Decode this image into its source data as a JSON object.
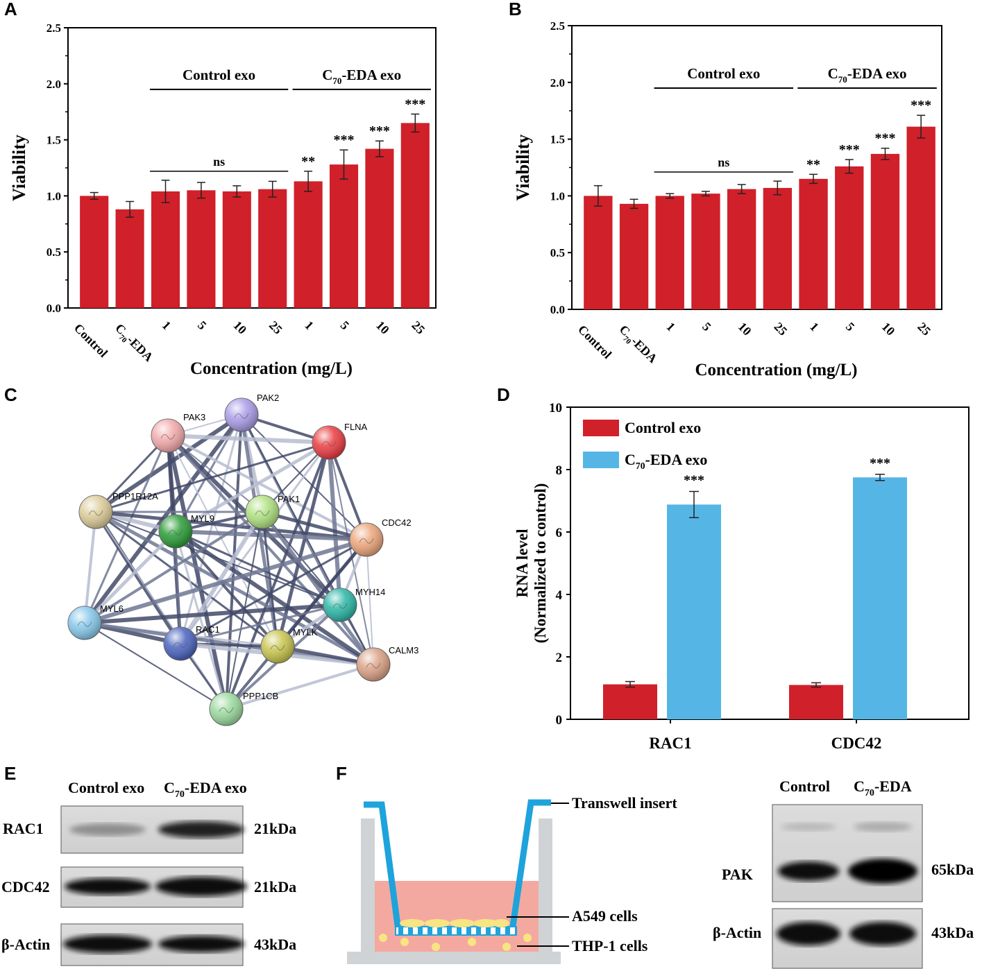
{
  "panels": {
    "A": "A",
    "B": "B",
    "C": "C",
    "D": "D",
    "E": "E",
    "F": "F"
  },
  "chart_data": [
    {
      "id": "A",
      "type": "bar",
      "ylabel": "Viability",
      "xlabel": "Concentration (mg/L)",
      "ylim": [
        0,
        2.5
      ],
      "yticks": [
        "0.0",
        "0.5",
        "1.0",
        "1.5",
        "2.0",
        "2.5"
      ],
      "categories": [
        "Control",
        "C70-EDA",
        "1",
        "5",
        "10",
        "25",
        "1",
        "5",
        "10",
        "25"
      ],
      "values": [
        1.0,
        0.88,
        1.04,
        1.05,
        1.04,
        1.06,
        1.13,
        1.28,
        1.42,
        1.65
      ],
      "errors": [
        0.03,
        0.07,
        0.1,
        0.07,
        0.05,
        0.07,
        0.09,
        0.13,
        0.07,
        0.08
      ],
      "significance": [
        "",
        "",
        "",
        "",
        "",
        "",
        "**",
        "***",
        "***",
        "***"
      ],
      "groups": [
        {
          "label": "Control exo",
          "from": 2,
          "to": 5
        },
        {
          "label": "C70-EDA exo",
          "from": 6,
          "to": 9
        }
      ],
      "ns_label": "ns"
    },
    {
      "id": "B",
      "type": "bar",
      "ylabel": "Viability",
      "xlabel": "Concentration (mg/L)",
      "ylim": [
        0,
        2.5
      ],
      "yticks": [
        "0.0",
        "0.5",
        "1.0",
        "1.5",
        "2.0",
        "2.5"
      ],
      "categories": [
        "Control",
        "C70-EDA",
        "1",
        "5",
        "10",
        "25",
        "1",
        "5",
        "10",
        "25"
      ],
      "values": [
        1.0,
        0.93,
        1.0,
        1.02,
        1.06,
        1.07,
        1.15,
        1.26,
        1.37,
        1.61
      ],
      "errors": [
        0.09,
        0.04,
        0.02,
        0.02,
        0.04,
        0.06,
        0.04,
        0.06,
        0.05,
        0.1
      ],
      "significance": [
        "",
        "",
        "",
        "",
        "",
        "",
        "**",
        "***",
        "***",
        "***"
      ],
      "groups": [
        {
          "label": "Control exo",
          "from": 2,
          "to": 5
        },
        {
          "label": "C70-EDA exo",
          "from": 6,
          "to": 9
        }
      ],
      "ns_label": "ns"
    },
    {
      "id": "D",
      "type": "bar",
      "ylabel_line1": "RNA level",
      "ylabel_line2": "(Normalized to control)",
      "ylim": [
        0,
        10
      ],
      "yticks": [
        "0",
        "2",
        "4",
        "6",
        "8",
        "10"
      ],
      "categories": [
        "RAC1",
        "CDC42"
      ],
      "series": [
        {
          "name": "Control exo",
          "values": [
            1.12,
            1.1
          ],
          "errors": [
            0.09,
            0.07
          ],
          "color": "#d0202a"
        },
        {
          "name": "C70-EDA exo",
          "values": [
            6.88,
            7.75
          ],
          "errors": [
            0.42,
            0.1
          ],
          "color": "#55b6e5",
          "significance": [
            "***",
            "***"
          ]
        }
      ]
    }
  ],
  "network": {
    "nodes": [
      {
        "id": "PAK2",
        "color": "#a99be6"
      },
      {
        "id": "PAK3",
        "color": "#f2a9ab"
      },
      {
        "id": "FLNA",
        "color": "#ea3b41"
      },
      {
        "id": "PPP1R12A",
        "color": "#dccb98"
      },
      {
        "id": "MYL9",
        "color": "#2b9c38"
      },
      {
        "id": "PAK1",
        "color": "#aee07e"
      },
      {
        "id": "CDC42",
        "color": "#eca57a"
      },
      {
        "id": "MYH14",
        "color": "#2bb6a6"
      },
      {
        "id": "MYL6",
        "color": "#86c8ea"
      },
      {
        "id": "RAC1",
        "color": "#4a63bd"
      },
      {
        "id": "MYLK",
        "color": "#c7c34d"
      },
      {
        "id": "CALM3",
        "color": "#dba185"
      },
      {
        "id": "PPP1CB",
        "color": "#9ad99d"
      }
    ]
  },
  "panel_e": {
    "lane1": "Control exo",
    "lane2_pre": "C",
    "lane2_sub": "70",
    "lane2_post": "-EDA exo",
    "rows": [
      {
        "label": "RAC1",
        "size": "21kDa"
      },
      {
        "label": "CDC42",
        "size": "21kDa"
      },
      {
        "label": "β-Actin",
        "size": "43kDa"
      }
    ]
  },
  "panel_f": {
    "insert": "Transwell insert",
    "a549": "A549 cells",
    "thp1": "THP-1 cells",
    "lane1": "Control",
    "lane2_pre": "C",
    "lane2_sub": "70",
    "lane2_post": "-EDA",
    "rows": [
      {
        "label": "PAK",
        "size": "65kDa"
      },
      {
        "label": "β-Actin",
        "size": "43kDa"
      }
    ]
  }
}
